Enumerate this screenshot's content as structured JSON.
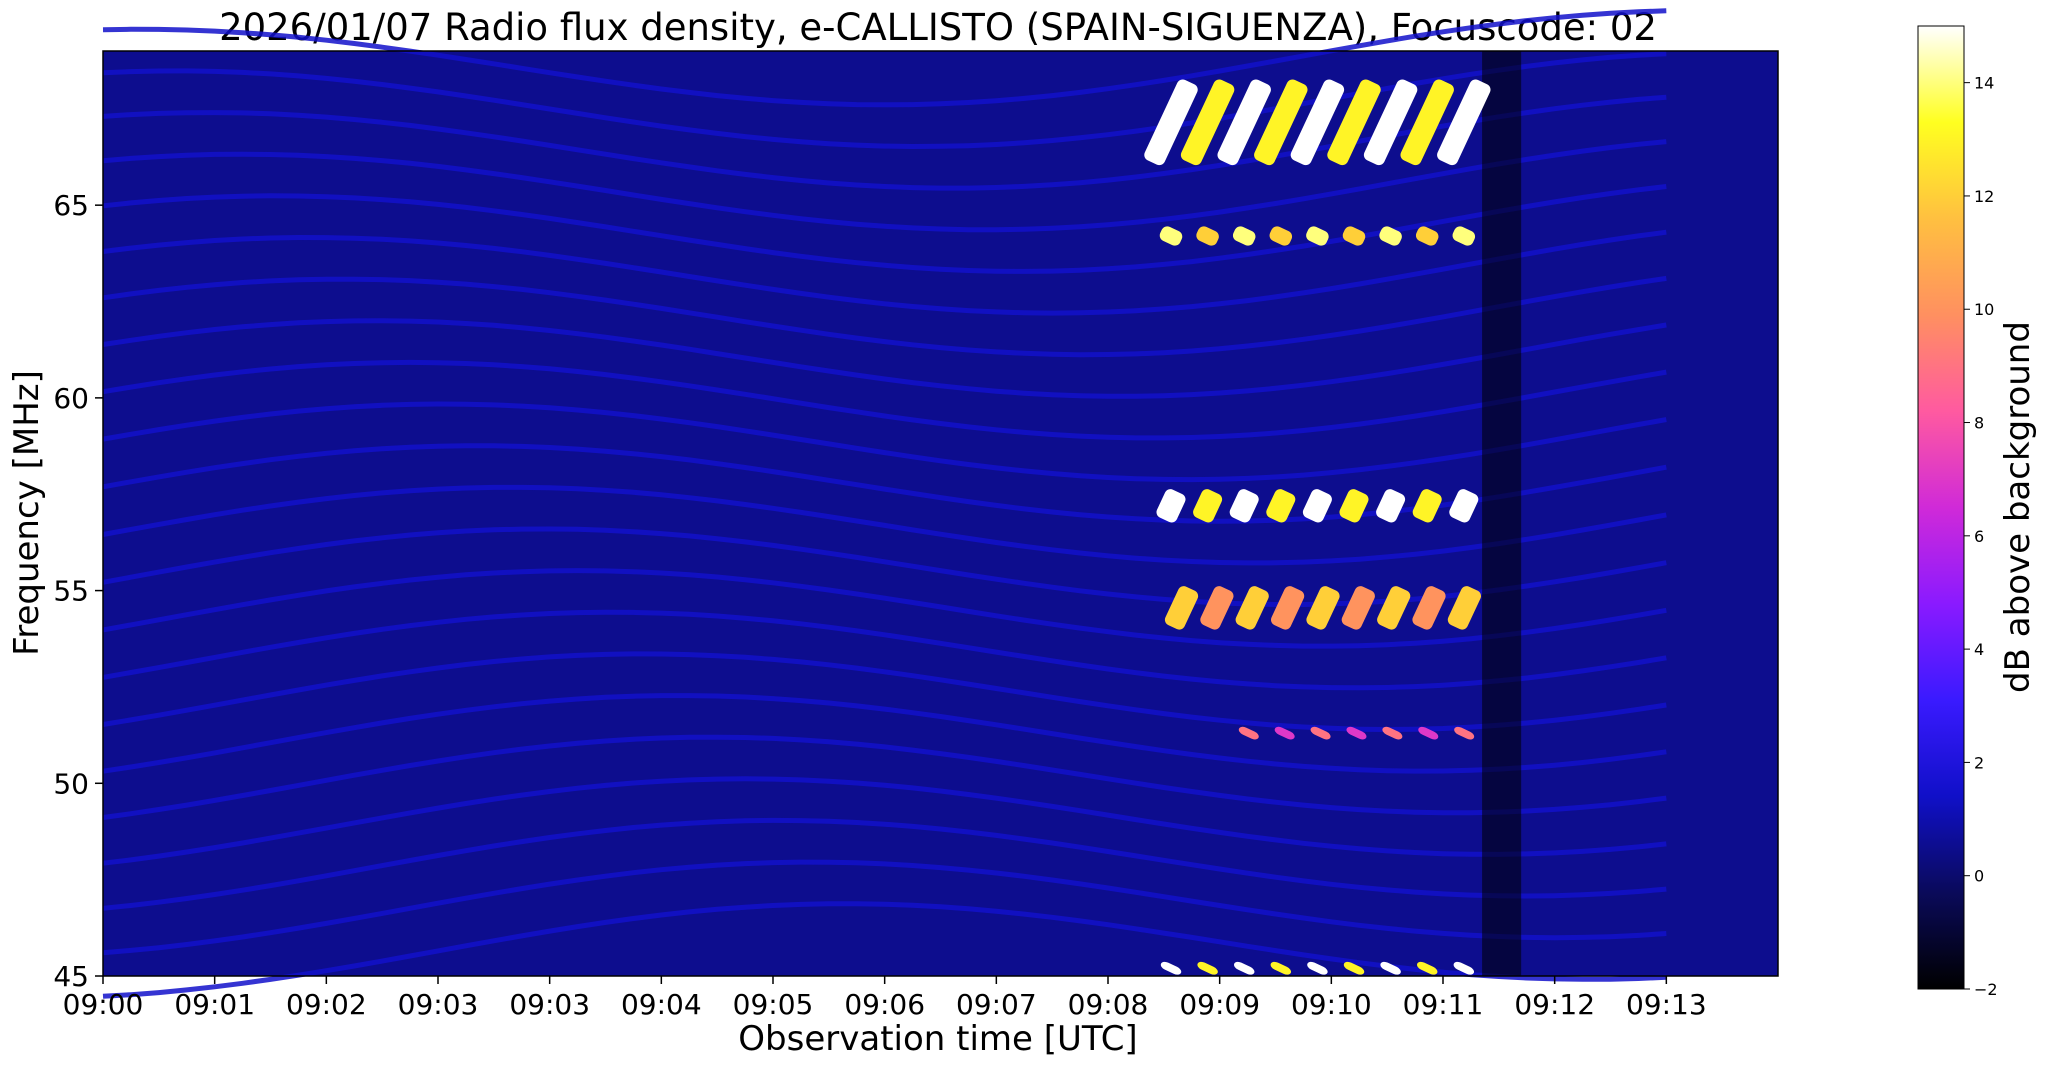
{
  "chart_data": {
    "type": "heatmap",
    "title": "2026/01/07  Radio flux density, e-CALLISTO (SPAIN-SIGUENZA), Focuscode: 02",
    "xlabel": "Observation time [UTC]",
    "ylabel": "Frequency [MHz]",
    "x_tick_labels": [
      "09:00",
      "09:01",
      "09:02",
      "09:03",
      "09:03",
      "09:04",
      "09:05",
      "09:06",
      "09:07",
      "09:08",
      "09:09",
      "09:10",
      "09:11",
      "09:12",
      "09:13"
    ],
    "x_range_min": [
      0,
      15
    ],
    "y_ticks": [
      45,
      50,
      55,
      60,
      65
    ],
    "y_tick_labels": [
      "45",
      "50",
      "55",
      "60",
      "65"
    ],
    "ylim": [
      45,
      69
    ],
    "colorbar": {
      "label": "dB above background",
      "range": [
        -2,
        15
      ],
      "ticks": [
        -2,
        0,
        2,
        4,
        6,
        8,
        10,
        12,
        14
      ],
      "tick_labels": [
        "−2",
        "0",
        "2",
        "4",
        "6",
        "8",
        "10",
        "12",
        "14"
      ],
      "colormap": [
        "#000000",
        "#0a0a5a",
        "#1010c8",
        "#3a1aff",
        "#8a1aff",
        "#d02ad8",
        "#ff5aa0",
        "#ff9060",
        "#ffc040",
        "#ffff20",
        "#ffffff"
      ]
    },
    "background_level_db": 0.5,
    "features": {
      "drifting_striations": {
        "dB": 1.5,
        "count": 22,
        "time_range_min": [
          0,
          14
        ]
      },
      "dark_gap_at_end": {
        "time_range_min": [
          12.35,
          12.7
        ]
      },
      "burst_bands": [
        {
          "freq_range_mhz": [
            66,
            68.3
          ],
          "time_range_min": [
            9.4,
            12.35
          ],
          "peak_dB": 15
        },
        {
          "freq_range_mhz": [
            64,
            64.4
          ],
          "time_range_min": [
            9.4,
            12.35
          ],
          "peak_dB": 14
        },
        {
          "freq_range_mhz": [
            56.8,
            57.6
          ],
          "time_range_min": [
            9.4,
            12.35
          ],
          "peak_dB": 15
        },
        {
          "freq_range_mhz": [
            54,
            55.1
          ],
          "time_range_min": [
            9.5,
            12.35
          ],
          "peak_dB": 12
        },
        {
          "freq_range_mhz": [
            51.2,
            51.4
          ],
          "time_range_min": [
            10.1,
            12.35
          ],
          "peak_dB": 9
        },
        {
          "freq_range_mhz": [
            45.1,
            45.3
          ],
          "time_range_min": [
            9.4,
            12.35
          ],
          "peak_dB": 15
        }
      ]
    }
  }
}
